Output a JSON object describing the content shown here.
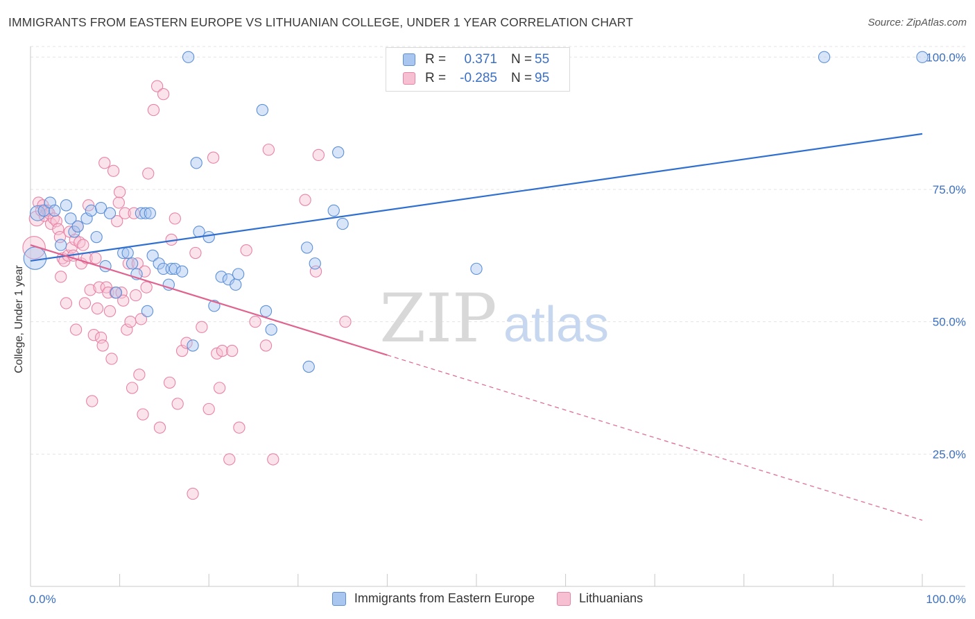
{
  "header": {
    "title": "IMMIGRANTS FROM EASTERN EUROPE VS LITHUANIAN COLLEGE, UNDER 1 YEAR CORRELATION CHART",
    "source": "Source: ZipAtlas.com"
  },
  "watermark": {
    "zip": "ZIP",
    "atlas": "atlas"
  },
  "legend": {
    "rows": [
      {
        "r_label": "R =",
        "r_value": "0.371",
        "n_label": "N =",
        "n_value": "55"
      },
      {
        "r_label": "R =",
        "r_value": "-0.285",
        "n_label": "N =",
        "n_value": "95"
      }
    ]
  },
  "chart_data": {
    "type": "scatter",
    "title": "IMMIGRANTS FROM EASTERN EUROPE VS LITHUANIAN COLLEGE, UNDER 1 YEAR CORRELATION CHART",
    "xlabel": "",
    "ylabel": "College, Under 1 year",
    "xlim": [
      0,
      100
    ],
    "ylim": [
      0,
      102
    ],
    "x_tick_labels": [
      "0.0%",
      "100.0%"
    ],
    "y_ticks": [
      25,
      50,
      75,
      100
    ],
    "y_tick_labels": [
      "25.0%",
      "50.0%",
      "75.0%",
      "100.0%"
    ],
    "grid": true,
    "colors": {
      "blue_fill": "#a9c6f0",
      "blue_stroke": "#5b8fd8",
      "blue_line": "#2f6fd0",
      "pink_fill": "#f7c0d2",
      "pink_stroke": "#e882a6",
      "pink_line": "#e0628f",
      "axis_label": "#3a6fc4",
      "grid": "#e3e3e3"
    },
    "series": [
      {
        "name": "Immigrants from Eastern Europe",
        "R": 0.371,
        "N": 55,
        "trend": {
          "x": [
            0,
            100
          ],
          "y": [
            61.5,
            85.5
          ],
          "dashed_from": null
        },
        "points": [
          [
            0.5,
            62,
            12
          ],
          [
            0.8,
            70.5,
            8
          ],
          [
            1.5,
            71,
            6
          ],
          [
            2.2,
            72.5,
            6
          ],
          [
            2.7,
            71,
            6
          ],
          [
            3.4,
            64.5,
            6
          ],
          [
            4.0,
            72,
            6
          ],
          [
            4.5,
            69.5,
            6
          ],
          [
            4.9,
            67,
            6
          ],
          [
            5.3,
            68,
            6
          ],
          [
            6.3,
            69.5,
            6
          ],
          [
            6.8,
            71,
            6
          ],
          [
            7.4,
            66,
            6
          ],
          [
            7.9,
            71.5,
            6
          ],
          [
            8.4,
            60.5,
            6
          ],
          [
            8.9,
            70.5,
            6
          ],
          [
            9.6,
            55.5,
            6
          ],
          [
            10.4,
            63,
            6
          ],
          [
            10.9,
            63,
            6
          ],
          [
            11.4,
            61,
            6
          ],
          [
            11.9,
            59,
            6
          ],
          [
            12.4,
            70.5,
            6
          ],
          [
            12.9,
            70.5,
            6
          ],
          [
            13.1,
            52,
            6
          ],
          [
            13.4,
            70.5,
            6
          ],
          [
            13.7,
            62.5,
            6
          ],
          [
            14.4,
            61,
            6
          ],
          [
            14.9,
            60,
            6
          ],
          [
            15.5,
            57,
            6
          ],
          [
            15.8,
            60,
            6
          ],
          [
            16.2,
            60,
            6
          ],
          [
            17.0,
            59.5,
            6
          ],
          [
            17.7,
            100,
            6
          ],
          [
            18.2,
            45.5,
            6
          ],
          [
            18.6,
            80,
            6
          ],
          [
            18.9,
            67,
            6
          ],
          [
            20.0,
            66,
            6
          ],
          [
            20.6,
            53,
            6
          ],
          [
            21.4,
            58.5,
            6
          ],
          [
            22.2,
            58,
            6
          ],
          [
            23.0,
            57,
            6
          ],
          [
            23.3,
            59,
            6
          ],
          [
            26.0,
            90,
            6
          ],
          [
            26.4,
            52,
            6
          ],
          [
            27.0,
            48.5,
            6
          ],
          [
            31.0,
            64,
            6
          ],
          [
            31.2,
            41.5,
            6
          ],
          [
            31.9,
            61,
            6
          ],
          [
            34.0,
            71,
            6
          ],
          [
            34.5,
            82,
            6
          ],
          [
            35.0,
            68.5,
            6
          ],
          [
            50.0,
            60,
            6
          ],
          [
            89.0,
            100,
            6
          ],
          [
            100,
            100,
            6
          ]
        ]
      },
      {
        "name": "Lithuanians",
        "R": -0.285,
        "N": 95,
        "trend": {
          "x": [
            0,
            100
          ],
          "y": [
            64.5,
            12.5
          ],
          "dashed_from": 40
        },
        "points": [
          [
            0.4,
            64,
            12
          ],
          [
            0.7,
            69.5,
            8
          ],
          [
            0.9,
            72.5,
            6
          ],
          [
            1.2,
            71,
            6
          ],
          [
            1.4,
            72,
            6
          ],
          [
            1.6,
            70,
            6
          ],
          [
            1.9,
            71,
            6
          ],
          [
            2.1,
            70.5,
            6
          ],
          [
            2.3,
            68.5,
            6
          ],
          [
            2.6,
            69.5,
            6
          ],
          [
            2.9,
            69,
            6
          ],
          [
            3.1,
            67.5,
            6
          ],
          [
            3.3,
            66,
            6
          ],
          [
            3.4,
            58.5,
            6
          ],
          [
            3.6,
            62,
            6
          ],
          [
            3.8,
            61.5,
            6
          ],
          [
            4.0,
            53.5,
            6
          ],
          [
            4.2,
            62.5,
            6
          ],
          [
            4.4,
            67,
            6
          ],
          [
            4.6,
            64,
            6
          ],
          [
            4.8,
            62.5,
            6
          ],
          [
            5.0,
            65.5,
            6
          ],
          [
            5.1,
            48.5,
            6
          ],
          [
            5.3,
            68,
            6
          ],
          [
            5.5,
            65,
            6
          ],
          [
            5.7,
            61,
            6
          ],
          [
            5.9,
            64.5,
            6
          ],
          [
            6.1,
            53.5,
            6
          ],
          [
            6.3,
            62,
            6
          ],
          [
            6.5,
            72,
            6
          ],
          [
            6.7,
            56,
            6
          ],
          [
            6.9,
            35,
            6
          ],
          [
            7.1,
            47.5,
            6
          ],
          [
            7.3,
            62,
            6
          ],
          [
            7.5,
            52.5,
            6
          ],
          [
            7.7,
            56.5,
            6
          ],
          [
            7.9,
            47,
            6
          ],
          [
            8.1,
            45.5,
            6
          ],
          [
            8.3,
            80,
            6
          ],
          [
            8.5,
            56.5,
            6
          ],
          [
            8.7,
            55.5,
            6
          ],
          [
            8.9,
            52,
            6
          ],
          [
            9.1,
            43,
            6
          ],
          [
            9.3,
            78.5,
            6
          ],
          [
            9.5,
            55.5,
            6
          ],
          [
            9.7,
            69,
            6
          ],
          [
            9.9,
            72.5,
            6
          ],
          [
            10.0,
            74.5,
            6
          ],
          [
            10.2,
            55.5,
            6
          ],
          [
            10.4,
            54,
            6
          ],
          [
            10.6,
            70.5,
            6
          ],
          [
            10.8,
            48.5,
            6
          ],
          [
            11.0,
            61,
            6
          ],
          [
            11.2,
            50,
            6
          ],
          [
            11.4,
            37.5,
            6
          ],
          [
            11.6,
            70.5,
            6
          ],
          [
            11.8,
            55,
            6
          ],
          [
            12.0,
            61,
            6
          ],
          [
            12.2,
            40,
            6
          ],
          [
            12.4,
            50.5,
            6
          ],
          [
            12.6,
            32.5,
            6
          ],
          [
            12.8,
            59.5,
            6
          ],
          [
            13.0,
            56.5,
            6
          ],
          [
            13.2,
            78,
            6
          ],
          [
            13.8,
            90,
            6
          ],
          [
            14.2,
            94.5,
            6
          ],
          [
            14.5,
            30,
            6
          ],
          [
            14.9,
            93,
            6
          ],
          [
            15.6,
            38.5,
            6
          ],
          [
            15.8,
            65.5,
            6
          ],
          [
            16.2,
            69.5,
            6
          ],
          [
            16.5,
            34.5,
            6
          ],
          [
            17.0,
            44.5,
            6
          ],
          [
            17.5,
            46,
            6
          ],
          [
            18.2,
            17.5,
            6
          ],
          [
            18.5,
            63,
            6
          ],
          [
            19.2,
            49,
            6
          ],
          [
            20.0,
            33.5,
            6
          ],
          [
            20.5,
            81,
            6
          ],
          [
            20.9,
            44,
            6
          ],
          [
            21.2,
            37.5,
            6
          ],
          [
            21.5,
            44.5,
            6
          ],
          [
            22.3,
            24,
            6
          ],
          [
            22.6,
            44.5,
            6
          ],
          [
            23.4,
            30,
            6
          ],
          [
            24.2,
            63.5,
            6
          ],
          [
            25.2,
            50,
            6
          ],
          [
            26.4,
            45.5,
            6
          ],
          [
            26.7,
            82.5,
            6
          ],
          [
            27.2,
            24,
            6
          ],
          [
            30.8,
            73,
            6
          ],
          [
            32.0,
            59.5,
            6
          ],
          [
            32.3,
            81.5,
            6
          ],
          [
            35.3,
            50,
            6
          ]
        ]
      }
    ]
  },
  "bottom_legend": {
    "items": [
      {
        "label": "Immigrants from Eastern Europe"
      },
      {
        "label": "Lithuanians"
      }
    ]
  }
}
